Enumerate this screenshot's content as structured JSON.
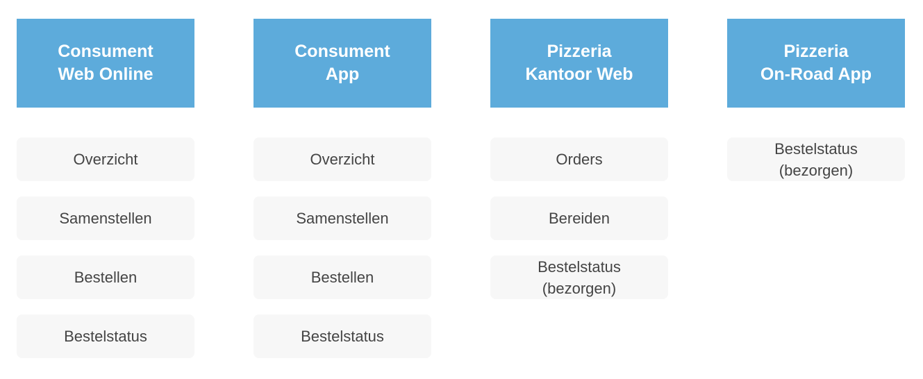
{
  "colors": {
    "header": "#5dabdb",
    "item": "#f7f7f7",
    "item_text": "#444444"
  },
  "columns": [
    {
      "title": "Consument\nWeb Online",
      "items": [
        "Overzicht",
        "Samenstellen",
        "Bestellen",
        "Bestelstatus"
      ]
    },
    {
      "title": "Consument\nApp",
      "items": [
        "Overzicht",
        "Samenstellen",
        "Bestellen",
        "Bestelstatus"
      ]
    },
    {
      "title": "Pizzeria\nKantoor Web",
      "items": [
        "Orders",
        "Bereiden",
        "Bestelstatus\n(bezorgen)"
      ]
    },
    {
      "title": "Pizzeria\nOn-Road App",
      "items": [
        "Bestelstatus\n(bezorgen)"
      ]
    }
  ]
}
